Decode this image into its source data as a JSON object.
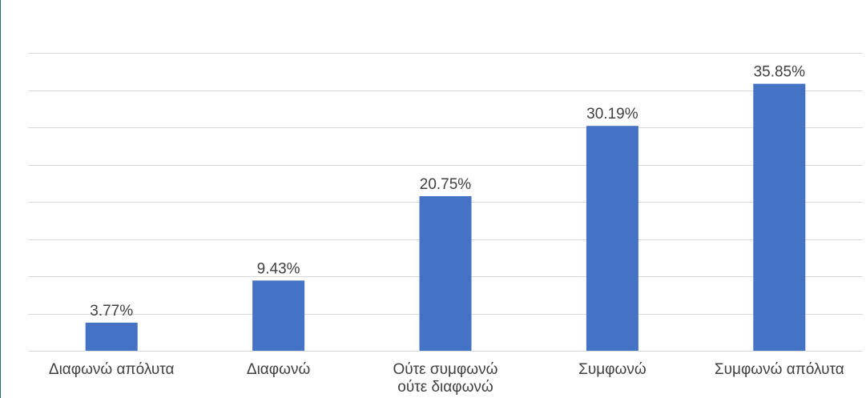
{
  "chart_data": {
    "type": "bar",
    "title": "",
    "xlabel": "",
    "ylabel": "",
    "categories": [
      [
        "Διαφωνώ απόλυτα"
      ],
      [
        "Διαφωνώ"
      ],
      [
        "Ούτε συμφωνώ",
        "ούτε διαφωνώ"
      ],
      [
        "Συμφωνώ"
      ],
      [
        "Συμφωνώ απόλυτα"
      ]
    ],
    "values": [
      3.77,
      9.43,
      20.75,
      30.19,
      35.85
    ],
    "data_labels": [
      "3.77%",
      "9.43%",
      "20.75%",
      "30.19%",
      "35.85%"
    ],
    "ylim": [
      0,
      40
    ],
    "y_gridline_step": 5,
    "y_axis_visible": false,
    "grid": true,
    "legend": "none",
    "bar_color": "#4472C4",
    "grid_color": "#d9d9d9",
    "text_color": "#404040"
  }
}
